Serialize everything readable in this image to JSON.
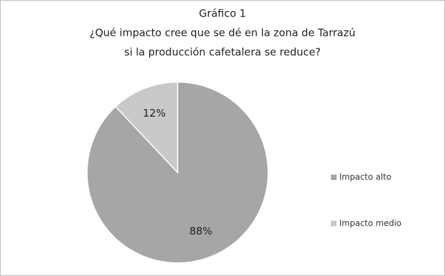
{
  "chart_data": {
    "type": "pie",
    "title": "Gráfico 1",
    "subtitle": [
      "¿Qué impacto cree que se dé en la zona de Tarrazú",
      "si la producción  cafetalera se reduce?"
    ],
    "categories": [
      "Impacto alto",
      "Impacto medio"
    ],
    "values": [
      88,
      12
    ],
    "value_labels": [
      "88%",
      "12%"
    ],
    "colors": [
      "#a6a6a6",
      "#c9c9c9"
    ],
    "legend": "right"
  }
}
